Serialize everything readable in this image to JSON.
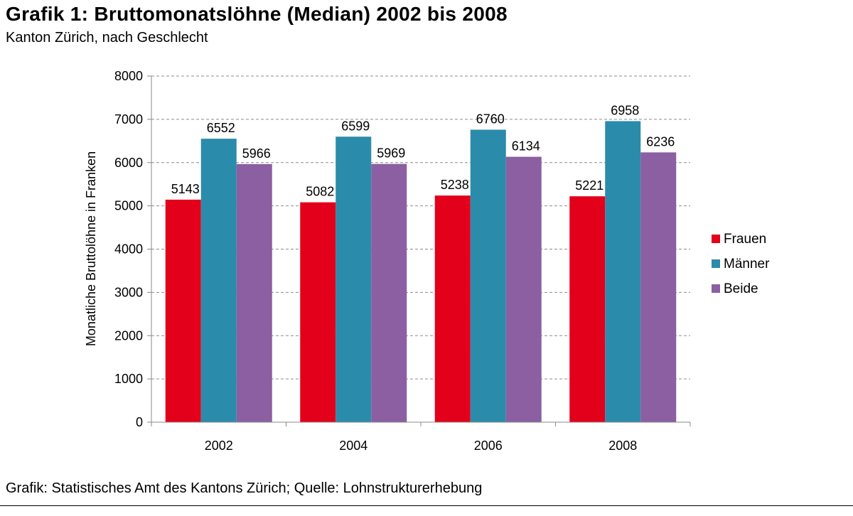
{
  "header": {
    "title": "Grafik 1: Bruttomonatslöhne (Median) 2002 bis 2008",
    "subtitle": "Kanton Zürich, nach Geschlecht"
  },
  "footer": {
    "source": "Grafik: Statistisches Amt des Kantons Zürich; Quelle: Lohnstrukturerhebung"
  },
  "chart_data": {
    "type": "bar",
    "title": "Grafik 1: Bruttomonatslöhne (Median) 2002 bis 2008",
    "subtitle": "Kanton Zürich, nach Geschlecht",
    "xlabel": "",
    "ylabel": "Monatliche Bruttolöhne in Franken",
    "categories": [
      "2002",
      "2004",
      "2006",
      "2008"
    ],
    "ylim": [
      0,
      8000
    ],
    "yticks": [
      0,
      1000,
      2000,
      3000,
      4000,
      5000,
      6000,
      7000,
      8000
    ],
    "grid": "horizontal dashed",
    "legend": "right",
    "series": [
      {
        "name": "Frauen",
        "color": "#e2001a",
        "values": [
          5143,
          5082,
          5238,
          5221
        ]
      },
      {
        "name": "Männer",
        "color": "#2a8bab",
        "values": [
          6552,
          6599,
          6760,
          6958
        ]
      },
      {
        "name": "Beide",
        "color": "#8b5fa1",
        "values": [
          5966,
          5969,
          6134,
          6236
        ]
      }
    ]
  }
}
